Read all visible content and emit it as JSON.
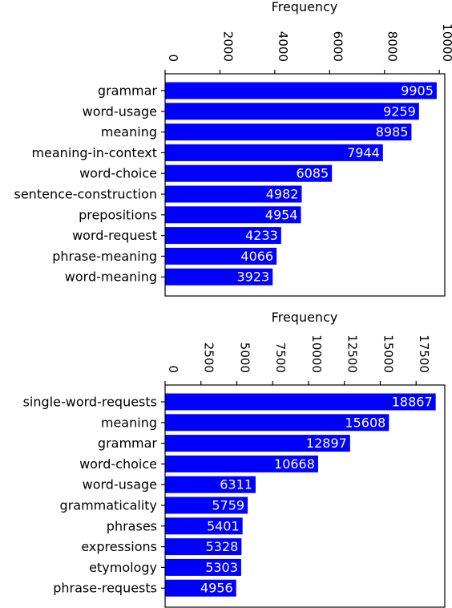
{
  "chart_data": [
    {
      "type": "bar",
      "orientation": "horizontal",
      "xlabel": "Frequency",
      "xlabel_position": "top",
      "ylabel": "",
      "title": "",
      "xlim": [
        0,
        10200
      ],
      "x_ticks": [
        0,
        2000,
        4000,
        6000,
        8000,
        10000
      ],
      "x_tick_labels": [
        "0",
        "2000",
        "4000",
        "6000",
        "8000",
        "10000"
      ],
      "categories": [
        "grammar",
        "word-usage",
        "meaning",
        "meaning-in-context",
        "word-choice",
        "sentence-construction",
        "prepositions",
        "word-request",
        "phrase-meaning",
        "word-meaning"
      ],
      "values": [
        9905,
        9259,
        8985,
        7944,
        6085,
        4982,
        4954,
        4233,
        4066,
        3923
      ],
      "value_labels": [
        "9905",
        "9259",
        "8985",
        "7944",
        "6085",
        "4982",
        "4954",
        "4233",
        "4066",
        "3923"
      ],
      "bar_color": "#0000ff",
      "value_label_color": "#ffffff",
      "grid": false,
      "legend": "none"
    },
    {
      "type": "bar",
      "orientation": "horizontal",
      "xlabel": "Frequency",
      "xlabel_position": "top",
      "ylabel": "",
      "title": "",
      "xlim": [
        0,
        19500
      ],
      "x_ticks": [
        0,
        2500,
        5000,
        7500,
        10000,
        12500,
        15000,
        17500
      ],
      "x_tick_labels": [
        "0",
        "2500",
        "5000",
        "7500",
        "10000",
        "12500",
        "15000",
        "17500"
      ],
      "categories": [
        "single-word-requests",
        "meaning",
        "grammar",
        "word-choice",
        "word-usage",
        "grammaticality",
        "phrases",
        "expressions",
        "etymology",
        "phrase-requests"
      ],
      "values": [
        18867,
        15608,
        12897,
        10668,
        6311,
        5759,
        5401,
        5328,
        5303,
        4956
      ],
      "value_labels": [
        "18867",
        "15608",
        "12897",
        "10668",
        "6311",
        "5759",
        "5401",
        "5328",
        "5303",
        "4956"
      ],
      "bar_color": "#0000ff",
      "value_label_color": "#ffffff",
      "grid": false,
      "legend": "none"
    }
  ]
}
